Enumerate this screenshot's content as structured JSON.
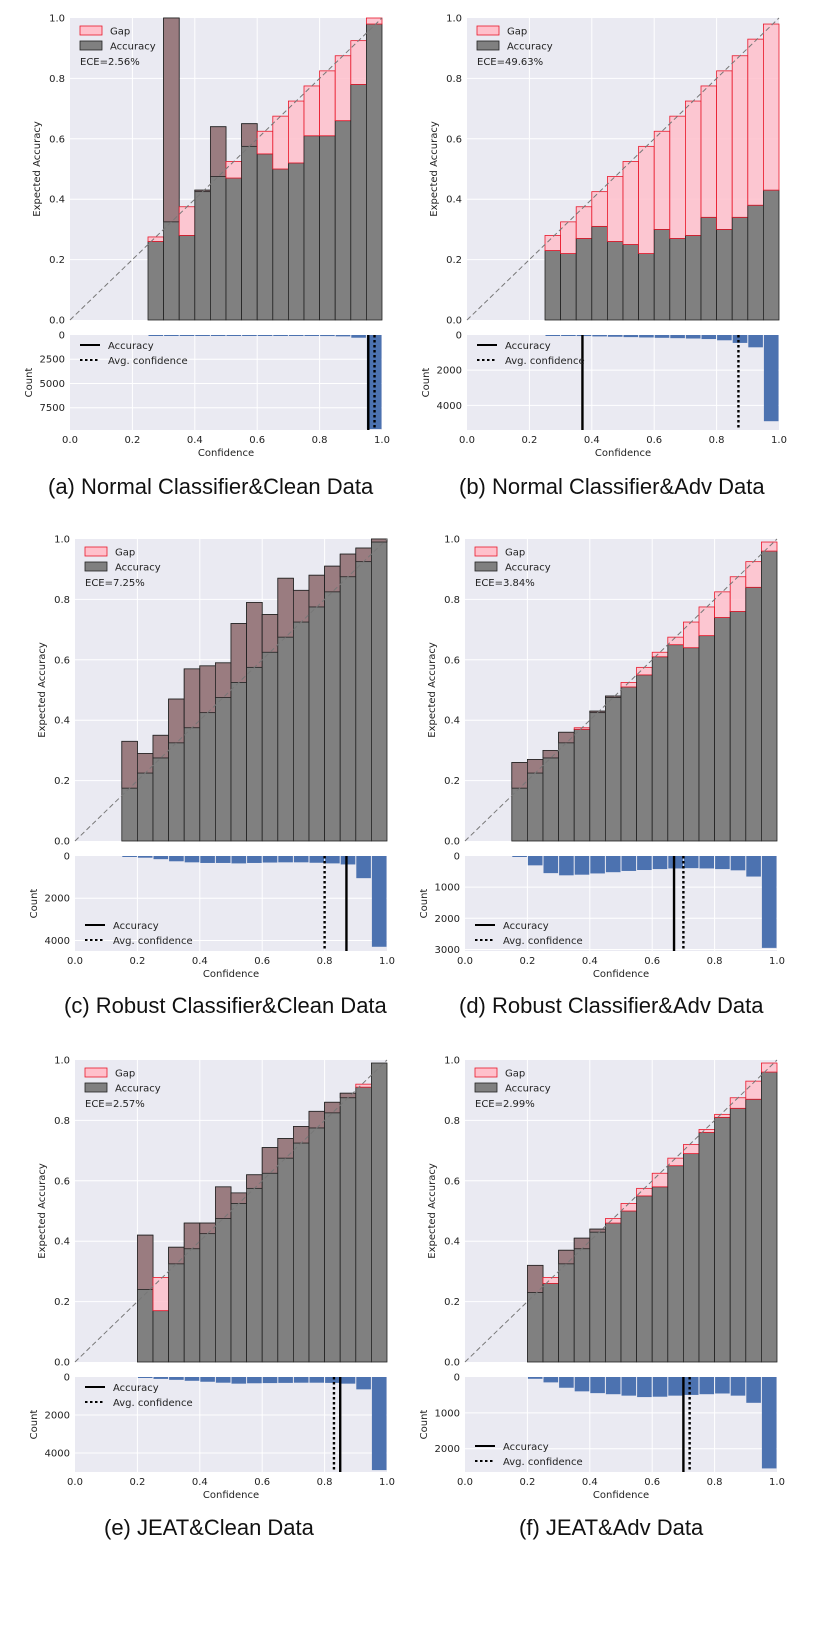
{
  "colors": {
    "background": "#eaeaf2",
    "grid": "#ffffff",
    "gap_fill": "#ffc0cb",
    "gap_edge": "#e8182b",
    "accuracy_fill": "#808080",
    "overlap_fill": "#9b7b7f",
    "bar_edge": "#222222",
    "count_fill": "#4c72b0",
    "diagonal": "#777777"
  },
  "chart_data": [
    {
      "id": "a",
      "type": "bar",
      "caption": "(a) Normal Classifier&Clean Data",
      "bins_lower": [
        0.0,
        0.05,
        0.1,
        0.15,
        0.2,
        0.25,
        0.3,
        0.35,
        0.4,
        0.45,
        0.5,
        0.55,
        0.6,
        0.65,
        0.7,
        0.75,
        0.8,
        0.85,
        0.9,
        0.95
      ],
      "accuracy": [
        0,
        0,
        0,
        0,
        0,
        0.26,
        1.0,
        0.28,
        0.43,
        0.64,
        0.47,
        0.65,
        0.55,
        0.5,
        0.52,
        0.61,
        0.61,
        0.66,
        0.78,
        0.98
      ],
      "confidence": [
        0.025,
        0.075,
        0.125,
        0.175,
        0.225,
        0.275,
        0.325,
        0.375,
        0.425,
        0.475,
        0.525,
        0.575,
        0.625,
        0.675,
        0.725,
        0.775,
        0.825,
        0.875,
        0.925,
        1.0
      ],
      "ece_text": "ECE=2.56%",
      "legend": {
        "gap": "Gap",
        "accuracy": "Accuracy"
      },
      "xlabel": "Confidence",
      "ylabel": "Expected Accuracy",
      "xlim": [
        0,
        1
      ],
      "ylim": [
        0,
        1
      ],
      "top_yticks": [
        "0.0",
        "0.2",
        "0.4",
        "0.6",
        "0.8",
        "1.0"
      ],
      "counts": [
        0,
        0,
        0,
        0,
        0,
        2,
        4,
        6,
        12,
        20,
        30,
        40,
        50,
        60,
        70,
        90,
        110,
        140,
        280,
        9700
      ],
      "count_max": 9800,
      "count_ticks": [
        0,
        2500,
        5000,
        7500
      ],
      "accuracy_line": 0.956,
      "avg_conf_line": 0.976,
      "hist_legend": {
        "acc": "Accuracy",
        "conf": "Avg. confidence"
      },
      "hist_legend_pos": "top-left",
      "xticks": [
        "0.0",
        "0.2",
        "0.4",
        "0.6",
        "0.8",
        "1.0"
      ]
    },
    {
      "id": "b",
      "type": "bar",
      "caption": "(b) Normal Classifier&Adv Data",
      "bins_lower": [
        0.0,
        0.05,
        0.1,
        0.15,
        0.2,
        0.25,
        0.3,
        0.35,
        0.4,
        0.45,
        0.5,
        0.55,
        0.6,
        0.65,
        0.7,
        0.75,
        0.8,
        0.85,
        0.9,
        0.95
      ],
      "accuracy": [
        0,
        0,
        0,
        0,
        0,
        0.23,
        0.22,
        0.27,
        0.31,
        0.26,
        0.25,
        0.22,
        0.3,
        0.27,
        0.28,
        0.34,
        0.3,
        0.34,
        0.38,
        0.43
      ],
      "confidence": [
        0.025,
        0.075,
        0.125,
        0.175,
        0.24,
        0.28,
        0.325,
        0.375,
        0.425,
        0.475,
        0.525,
        0.575,
        0.625,
        0.675,
        0.725,
        0.775,
        0.825,
        0.875,
        0.93,
        0.98
      ],
      "ece_text": "ECE=49.63%",
      "legend": {
        "gap": "Gap",
        "accuracy": "Accuracy"
      },
      "xlabel": "Confidence",
      "ylabel": "Expected Accuracy",
      "xlim": [
        0,
        1
      ],
      "ylim": [
        0,
        1
      ],
      "top_yticks": [
        "0.0",
        "0.2",
        "0.4",
        "0.6",
        "0.8",
        "1.0"
      ],
      "counts": [
        0,
        0,
        0,
        0,
        0,
        20,
        40,
        60,
        80,
        100,
        120,
        140,
        160,
        180,
        200,
        230,
        300,
        450,
        700,
        4900
      ],
      "count_max": 5400,
      "count_ticks": [
        0,
        2000,
        4000
      ],
      "accuracy_line": 0.37,
      "avg_conf_line": 0.87,
      "hist_legend": {
        "acc": "Accuracy",
        "conf": "Avg. confidence"
      },
      "hist_legend_pos": "top-left",
      "xticks": [
        "0.0",
        "0.2",
        "0.4",
        "0.6",
        "0.8",
        "1.0"
      ]
    },
    {
      "id": "c",
      "type": "bar",
      "caption": "(c) Robust Classifier&Clean Data",
      "bins_lower": [
        0.0,
        0.05,
        0.1,
        0.15,
        0.2,
        0.25,
        0.3,
        0.35,
        0.4,
        0.45,
        0.5,
        0.55,
        0.6,
        0.65,
        0.7,
        0.75,
        0.8,
        0.85,
        0.9,
        0.95
      ],
      "accuracy": [
        0,
        0,
        0,
        0.33,
        0.29,
        0.35,
        0.47,
        0.57,
        0.58,
        0.59,
        0.72,
        0.79,
        0.75,
        0.87,
        0.83,
        0.88,
        0.91,
        0.95,
        0.97,
        1.0
      ],
      "confidence": [
        0.025,
        0.075,
        0.125,
        0.175,
        0.225,
        0.275,
        0.325,
        0.375,
        0.425,
        0.475,
        0.525,
        0.575,
        0.625,
        0.675,
        0.725,
        0.775,
        0.825,
        0.875,
        0.925,
        0.99
      ],
      "ece_text": "ECE=7.25%",
      "legend": {
        "gap": "Gap",
        "accuracy": "Accuracy"
      },
      "xlabel": "Confidence",
      "ylabel": "Expected Accuracy",
      "xlim": [
        0,
        1
      ],
      "ylim": [
        0,
        1
      ],
      "top_yticks": [
        "0.0",
        "0.2",
        "0.4",
        "0.6",
        "0.8",
        "1.0"
      ],
      "counts": [
        0,
        0,
        0,
        30,
        80,
        150,
        250,
        300,
        330,
        330,
        350,
        330,
        310,
        300,
        300,
        320,
        350,
        400,
        1050,
        4300
      ],
      "count_max": 4500,
      "count_ticks": [
        0,
        2000,
        4000
      ],
      "accuracy_line": 0.87,
      "avg_conf_line": 0.8,
      "hist_legend": {
        "acc": "Accuracy",
        "conf": "Avg. confidence"
      },
      "hist_legend_pos": "bottom-left",
      "xticks": [
        "0.0",
        "0.2",
        "0.4",
        "0.6",
        "0.8",
        "1.0"
      ]
    },
    {
      "id": "d",
      "type": "bar",
      "caption": "(d) Robust Classifier&Adv Data",
      "bins_lower": [
        0.0,
        0.05,
        0.1,
        0.15,
        0.2,
        0.25,
        0.3,
        0.35,
        0.4,
        0.45,
        0.5,
        0.55,
        0.6,
        0.65,
        0.7,
        0.75,
        0.8,
        0.85,
        0.9,
        0.95
      ],
      "accuracy": [
        0,
        0,
        0,
        0.26,
        0.27,
        0.3,
        0.36,
        0.37,
        0.43,
        0.48,
        0.51,
        0.55,
        0.61,
        0.65,
        0.64,
        0.68,
        0.74,
        0.76,
        0.84,
        0.96
      ],
      "confidence": [
        0.025,
        0.075,
        0.125,
        0.175,
        0.225,
        0.275,
        0.325,
        0.375,
        0.425,
        0.475,
        0.525,
        0.575,
        0.625,
        0.675,
        0.725,
        0.775,
        0.825,
        0.875,
        0.925,
        0.99
      ],
      "ece_text": "ECE=3.84%",
      "legend": {
        "gap": "Gap",
        "accuracy": "Accuracy"
      },
      "xlabel": "Confidence",
      "ylabel": "Expected Accuracy",
      "xlim": [
        0,
        1
      ],
      "ylim": [
        0,
        1
      ],
      "top_yticks": [
        "0.0",
        "0.2",
        "0.4",
        "0.6",
        "0.8",
        "1.0"
      ],
      "counts": [
        0,
        0,
        0,
        30,
        300,
        550,
        620,
        600,
        560,
        520,
        480,
        450,
        420,
        400,
        390,
        400,
        420,
        460,
        660,
        2950
      ],
      "count_max": 3050,
      "count_ticks": [
        0,
        1000,
        2000,
        3000
      ],
      "accuracy_line": 0.67,
      "avg_conf_line": 0.7,
      "hist_legend": {
        "acc": "Accuracy",
        "conf": "Avg. confidence"
      },
      "hist_legend_pos": "bottom-left",
      "xticks": [
        "0.0",
        "0.2",
        "0.4",
        "0.6",
        "0.8",
        "1.0"
      ]
    },
    {
      "id": "e",
      "type": "bar",
      "caption": "(e) JEAT&Clean Data",
      "bins_lower": [
        0.0,
        0.05,
        0.1,
        0.15,
        0.2,
        0.25,
        0.3,
        0.35,
        0.4,
        0.45,
        0.5,
        0.55,
        0.6,
        0.65,
        0.7,
        0.75,
        0.8,
        0.85,
        0.9,
        0.95
      ],
      "accuracy": [
        0,
        0,
        0,
        0,
        0.42,
        0.17,
        0.38,
        0.46,
        0.46,
        0.58,
        0.56,
        0.62,
        0.71,
        0.74,
        0.78,
        0.83,
        0.86,
        0.89,
        0.91,
        0.99
      ],
      "confidence": [
        0.025,
        0.075,
        0.125,
        0.19,
        0.24,
        0.28,
        0.325,
        0.375,
        0.425,
        0.475,
        0.525,
        0.575,
        0.625,
        0.675,
        0.725,
        0.775,
        0.825,
        0.875,
        0.92,
        0.99
      ],
      "ece_text": "ECE=2.57%",
      "legend": {
        "gap": "Gap",
        "accuracy": "Accuracy"
      },
      "xlabel": "Confidence",
      "ylabel": "Expected Accuracy",
      "xlim": [
        0,
        1
      ],
      "ylim": [
        0,
        1
      ],
      "top_yticks": [
        "0.0",
        "0.2",
        "0.4",
        "0.6",
        "0.8",
        "1.0"
      ],
      "counts": [
        0,
        0,
        0,
        0,
        50,
        100,
        150,
        200,
        250,
        300,
        350,
        330,
        320,
        310,
        300,
        300,
        310,
        350,
        650,
        4900
      ],
      "count_max": 5000,
      "count_ticks": [
        0,
        2000,
        4000
      ],
      "accuracy_line": 0.85,
      "avg_conf_line": 0.83,
      "hist_legend": {
        "acc": "Accuracy",
        "conf": "Avg. confidence"
      },
      "hist_legend_pos": "top-left",
      "xticks": [
        "0.0",
        "0.2",
        "0.4",
        "0.6",
        "0.8",
        "1.0"
      ]
    },
    {
      "id": "f",
      "type": "bar",
      "caption": "(f) JEAT&Adv Data",
      "bins_lower": [
        0.0,
        0.05,
        0.1,
        0.15,
        0.2,
        0.25,
        0.3,
        0.35,
        0.4,
        0.45,
        0.5,
        0.55,
        0.6,
        0.65,
        0.7,
        0.75,
        0.8,
        0.85,
        0.9,
        0.95
      ],
      "accuracy": [
        0,
        0,
        0,
        0,
        0.32,
        0.26,
        0.37,
        0.41,
        0.44,
        0.46,
        0.5,
        0.55,
        0.58,
        0.65,
        0.69,
        0.76,
        0.81,
        0.84,
        0.87,
        0.96
      ],
      "confidence": [
        0.025,
        0.075,
        0.125,
        0.19,
        0.23,
        0.28,
        0.325,
        0.375,
        0.43,
        0.475,
        0.525,
        0.575,
        0.625,
        0.675,
        0.72,
        0.77,
        0.82,
        0.875,
        0.93,
        0.99
      ],
      "ece_text": "ECE=2.99%",
      "legend": {
        "gap": "Gap",
        "accuracy": "Accuracy"
      },
      "xlabel": "Confidence",
      "ylabel": "Expected Accuracy",
      "xlim": [
        0,
        1
      ],
      "ylim": [
        0,
        1
      ],
      "top_yticks": [
        "0.0",
        "0.2",
        "0.4",
        "0.6",
        "0.8",
        "1.0"
      ],
      "counts": [
        0,
        0,
        0,
        0,
        50,
        150,
        300,
        400,
        450,
        480,
        520,
        560,
        550,
        520,
        500,
        480,
        460,
        520,
        720,
        2550
      ],
      "count_max": 2650,
      "count_ticks": [
        0,
        1000,
        2000
      ],
      "accuracy_line": 0.7,
      "avg_conf_line": 0.72,
      "hist_legend": {
        "acc": "Accuracy",
        "conf": "Avg. confidence"
      },
      "hist_legend_pos": "bottom-left",
      "xticks": [
        "0.0",
        "0.2",
        "0.4",
        "0.6",
        "0.8",
        "1.0"
      ]
    }
  ]
}
